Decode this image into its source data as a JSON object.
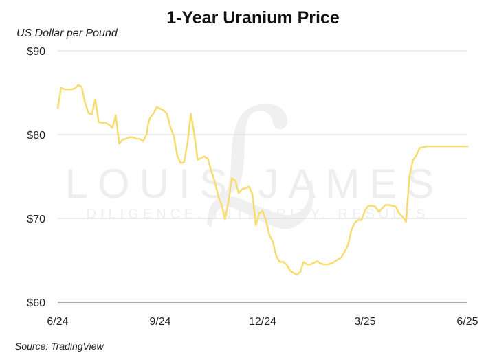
{
  "chart_data": {
    "type": "line",
    "title": "1-Year Uranium Price",
    "ylabel": "US Dollar per Pound",
    "ylim": [
      60,
      90
    ],
    "yticks": [
      90,
      80,
      70,
      60
    ],
    "ytick_labels": [
      "$90",
      "$80",
      "$70",
      "$60"
    ],
    "xlim": [
      0,
      12
    ],
    "xticks": [
      0,
      3,
      6,
      9,
      12
    ],
    "xtick_labels": [
      "6/24",
      "9/24",
      "12/24",
      "3/25",
      "6/25"
    ],
    "grid": "horizontal",
    "line_color": "#F7DC6F",
    "series": [
      {
        "x": [
          0,
          0.1,
          0.2,
          0.4,
          0.5,
          0.6,
          0.7,
          0.8,
          0.9,
          1.0,
          1.1,
          1.2,
          1.3,
          1.4,
          1.5,
          1.6,
          1.7,
          1.8,
          1.9,
          2.0,
          2.1,
          2.2,
          2.3,
          2.4,
          2.5,
          2.6,
          2.65,
          2.7,
          2.8,
          2.9,
          3.0,
          3.1,
          3.2,
          3.3,
          3.4,
          3.5,
          3.6,
          3.7,
          3.8,
          3.9,
          4.0,
          4.1,
          4.2,
          4.3,
          4.4,
          4.5,
          4.6,
          4.7,
          4.8,
          4.9,
          5.0,
          5.1,
          5.2,
          5.3,
          5.4,
          5.5,
          5.6,
          5.7,
          5.8,
          5.9,
          6.0,
          6.1,
          6.2,
          6.3,
          6.4,
          6.5,
          6.6,
          6.7,
          6.8,
          6.9,
          7.0,
          7.1,
          7.2,
          7.3,
          7.4,
          7.5,
          7.6,
          7.7,
          7.8,
          7.9,
          8.0,
          8.1,
          8.2,
          8.3,
          8.4,
          8.5,
          8.6,
          8.7,
          8.8,
          8.9,
          9.0,
          9.1,
          9.2,
          9.3,
          9.4,
          9.5,
          9.6,
          9.7,
          9.8,
          9.9,
          10.0,
          10.1,
          10.2,
          10.3,
          10.4,
          10.5,
          10.6,
          10.7,
          10.8,
          10.9,
          11.0,
          11.1,
          11.2,
          11.3,
          11.4,
          11.5,
          11.6,
          11.7,
          11.8,
          11.9,
          12.0
        ],
        "y": [
          83.2,
          85.6,
          85.4,
          85.4,
          85.5,
          85.9,
          85.7,
          83.8,
          82.6,
          82.4,
          84.2,
          81.5,
          81.4,
          81.4,
          81.2,
          80.8,
          82.3,
          78.9,
          79.4,
          79.5,
          79.7,
          79.7,
          79.5,
          79.5,
          79.2,
          80.0,
          81.3,
          82.0,
          82.5,
          83.3,
          83.1,
          82.9,
          82.5,
          80.9,
          79.8,
          77.5,
          76.6,
          76.7,
          79.0,
          82.5,
          80.0,
          77.0,
          77.2,
          77.4,
          77.1,
          75.6,
          74.4,
          72.7,
          71.6,
          69.9,
          72.0,
          74.8,
          74.5,
          73.0,
          73.5,
          73.6,
          73.8,
          72.9,
          69.2,
          70.6,
          70.9,
          69.7,
          68.0,
          67.2,
          65.5,
          64.8,
          64.8,
          64.5,
          63.8,
          63.5,
          63.3,
          63.6,
          64.8,
          64.5,
          64.5,
          64.7,
          64.9,
          64.6,
          64.5,
          64.5,
          64.6,
          64.8,
          65.1,
          65.3,
          66.0,
          66.8,
          68.6,
          69.5,
          69.8,
          69.8,
          71.0,
          71.5,
          71.5,
          71.4,
          70.8,
          71.2,
          71.6,
          71.6,
          71.5,
          71.4,
          70.6,
          70.2,
          69.6,
          75.0,
          76.9,
          77.5,
          78.4,
          78.5,
          78.6,
          78.6,
          78.6,
          78.6,
          78.6,
          78.6,
          78.6,
          78.6,
          78.6,
          78.6,
          78.6,
          78.6,
          78.6
        ]
      }
    ]
  },
  "source": "Source: TradingView",
  "watermark": {
    "brand": "LOUIS JAMES",
    "tagline": "DILIGENCE. INTEGRITY. RESULTS"
  }
}
